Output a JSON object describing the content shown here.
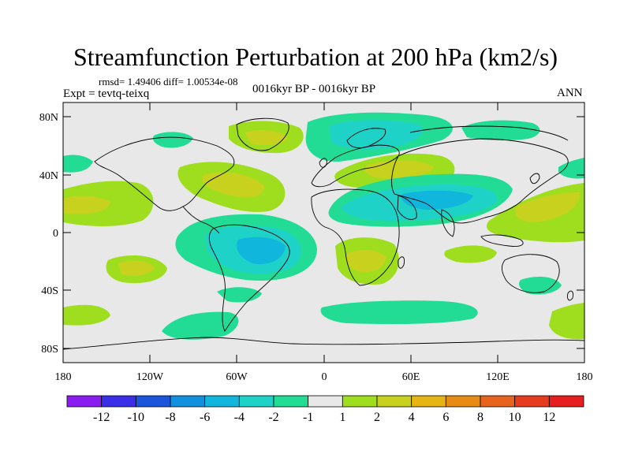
{
  "title": "Streamfunction Perturbation at 200 hPa (km2/s)",
  "stats_line": "rmsd= 1.49406  diff= 1.00534e-08",
  "experiment": "Expt = tevtq-teixq",
  "period": "0016kyr BP - 0016kyr BP",
  "season": "ANN",
  "axes": {
    "y_ticks": [
      "80N",
      "40N",
      "0",
      "40S",
      "80S"
    ],
    "x_ticks": [
      "180",
      "120W",
      "60W",
      "0",
      "60E",
      "120E",
      "180"
    ]
  },
  "colorbar": {
    "labels": [
      "-12",
      "-10",
      "-8",
      "-6",
      "-4",
      "-2",
      "-1",
      "1",
      "2",
      "4",
      "6",
      "8",
      "10",
      "12"
    ],
    "colors": [
      "#8b1cf0",
      "#3a2ee6",
      "#1a55dc",
      "#1190e0",
      "#10b6dc",
      "#1ed2c8",
      "#22dc96",
      "#e8e8e8",
      "#9ede1e",
      "#c8d21e",
      "#e6b414",
      "#e68c14",
      "#e6641e",
      "#e63c1e",
      "#e61e1e"
    ]
  },
  "palette": {
    "neutral": "#e8e8e8",
    "neg_1": "#22dc96",
    "neg_2": "#1ed2c8",
    "neg_4": "#10b6dc",
    "pos_1": "#9ede1e",
    "pos_2": "#c8d21e"
  }
}
